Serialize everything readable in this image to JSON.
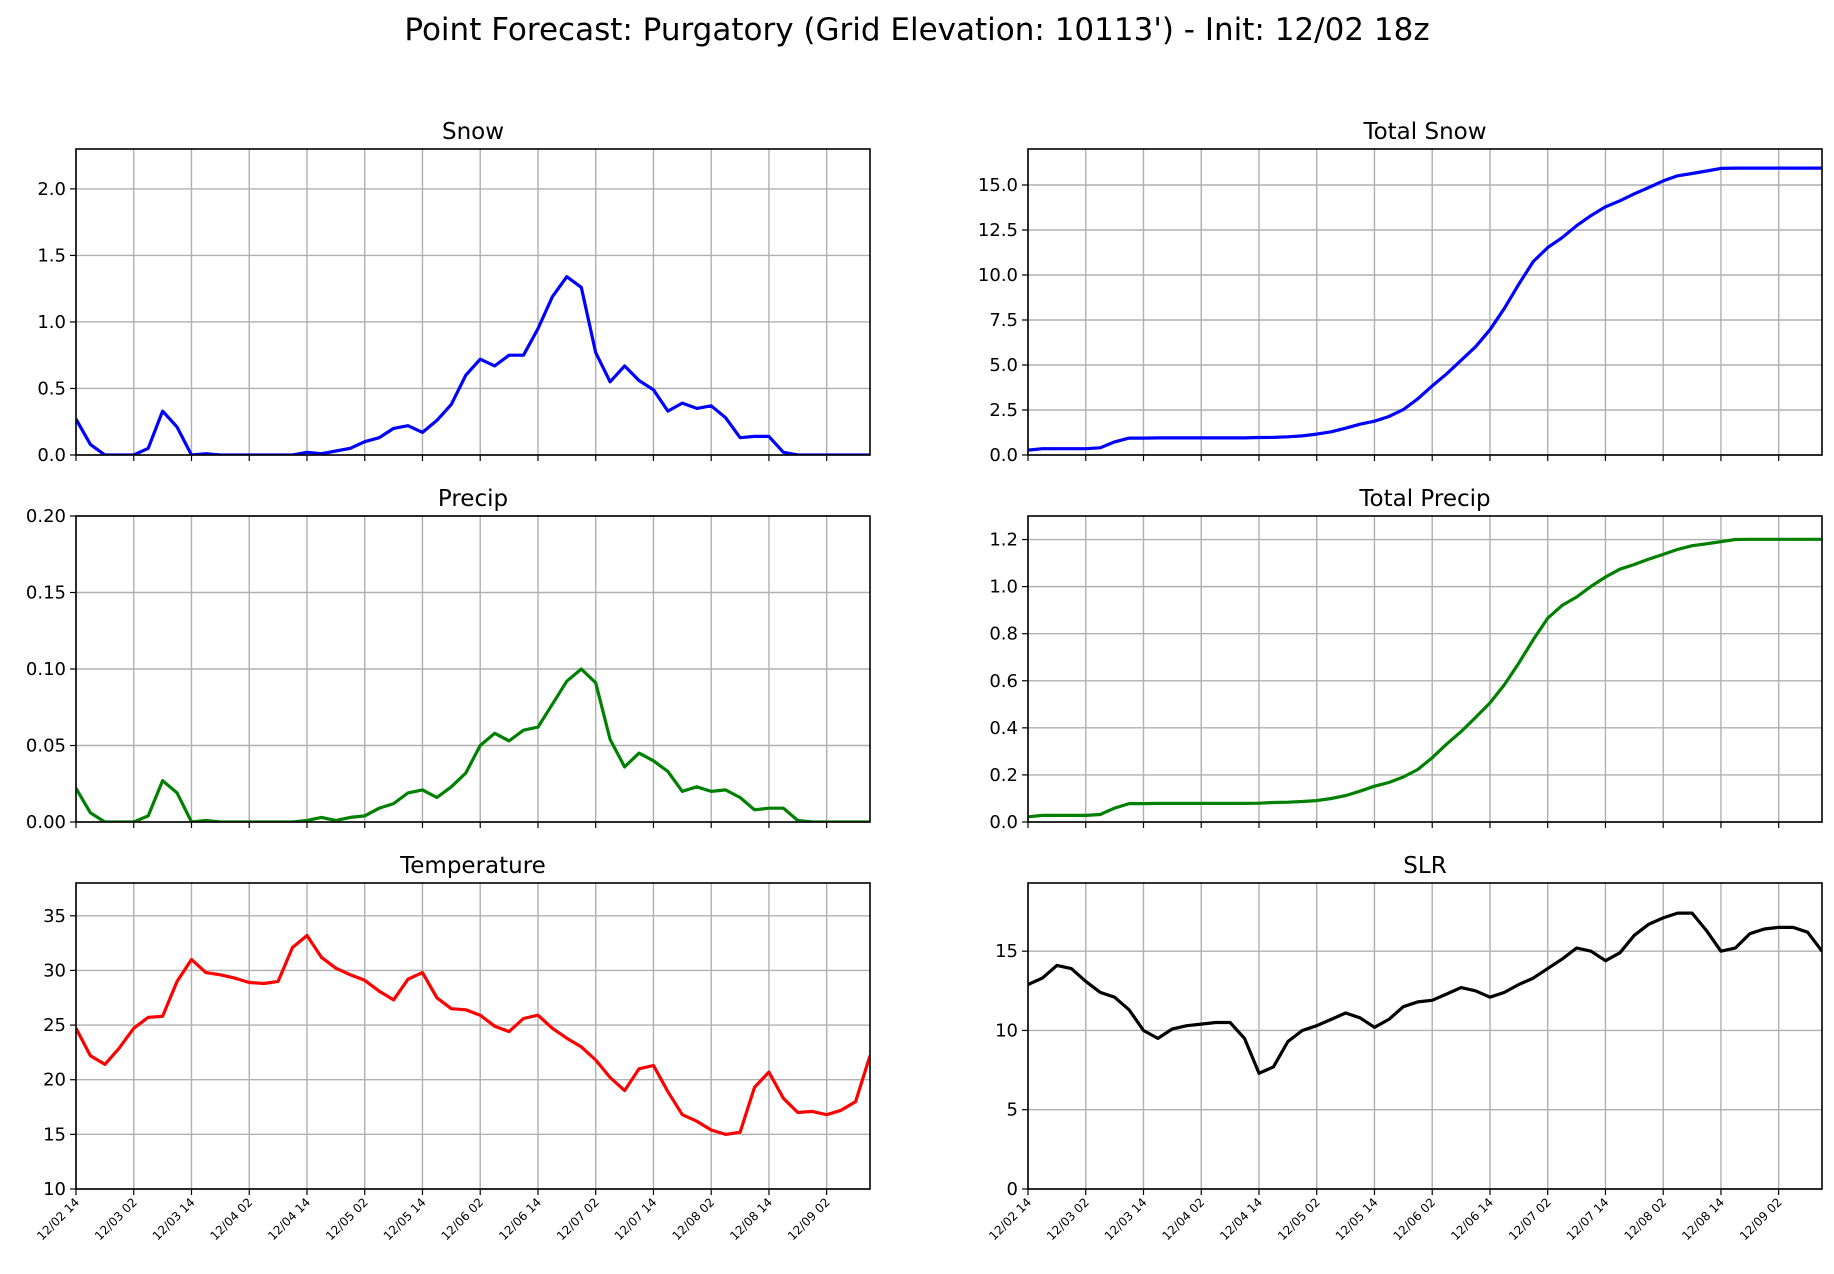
{
  "figure": {
    "title": "Point Forecast: Purgatory (Grid Elevation: 10113') - Init: 12/02 18z"
  },
  "x_tick_labels": [
    "12/02 14",
    "12/03 02",
    "12/03 14",
    "12/04 02",
    "12/04 14",
    "12/05 02",
    "12/05 14",
    "12/06 02",
    "12/06 14",
    "12/07 02",
    "12/07 14",
    "12/08 02",
    "12/08 14",
    "12/09 02"
  ],
  "chart_data": [
    {
      "type": "line",
      "title": "Snow",
      "xlabel": "",
      "ylabel": "",
      "x_unit": "hours from 12/02 14",
      "xlim": [
        0,
        165
      ],
      "ylim": [
        0,
        2.3
      ],
      "yticks": [
        "0.0",
        "0.5",
        "1.0",
        "1.5",
        "2.0"
      ],
      "color": "#0000ff",
      "grid": true,
      "x": [
        0,
        3,
        6,
        9,
        12,
        15,
        18,
        21,
        24,
        27,
        30,
        33,
        36,
        39,
        42,
        45,
        48,
        51,
        54,
        57,
        60,
        63,
        66,
        69,
        72,
        75,
        78,
        81,
        84,
        87,
        90,
        93,
        96,
        99,
        102,
        105,
        108,
        111,
        114,
        117,
        120,
        123,
        126,
        129,
        132,
        135,
        138,
        141,
        144,
        147,
        150,
        153,
        156,
        159,
        162,
        165
      ],
      "values": [
        0.27,
        0.08,
        0.0,
        0.0,
        0.0,
        0.05,
        0.33,
        0.21,
        0.0,
        0.01,
        0.0,
        0.0,
        0.0,
        0.0,
        0.0,
        0.0,
        0.02,
        0.01,
        0.03,
        0.05,
        0.1,
        0.13,
        0.2,
        0.22,
        0.17,
        0.26,
        0.38,
        0.6,
        0.72,
        0.67,
        0.75,
        0.75,
        0.95,
        1.19,
        1.34,
        1.26,
        0.77,
        0.55,
        0.67,
        0.56,
        0.49,
        0.33,
        0.39,
        0.35,
        0.37,
        0.28,
        0.13,
        0.14,
        0.14,
        0.02,
        0.0,
        0.0,
        0.0,
        0.0,
        0.0,
        0.0
      ]
    },
    {
      "type": "line",
      "title": "Total Snow",
      "xlabel": "",
      "ylabel": "",
      "x_unit": "hours from 12/02 14",
      "xlim": [
        0,
        165
      ],
      "ylim": [
        0,
        17
      ],
      "yticks": [
        "0.0",
        "2.5",
        "5.0",
        "7.5",
        "10.0",
        "12.5",
        "15.0"
      ],
      "color": "#0000ff",
      "grid": true,
      "x": [
        0,
        3,
        6,
        9,
        12,
        15,
        18,
        21,
        24,
        27,
        30,
        33,
        36,
        39,
        42,
        45,
        48,
        51,
        54,
        57,
        60,
        63,
        66,
        69,
        72,
        75,
        78,
        81,
        84,
        87,
        90,
        93,
        96,
        99,
        102,
        105,
        108,
        111,
        114,
        117,
        120,
        123,
        126,
        129,
        132,
        135,
        138,
        141,
        144,
        147,
        150,
        153,
        156,
        159,
        162,
        165
      ],
      "values": [
        0.27,
        0.35,
        0.35,
        0.35,
        0.35,
        0.4,
        0.73,
        0.94,
        0.94,
        0.95,
        0.95,
        0.95,
        0.95,
        0.95,
        0.95,
        0.95,
        0.97,
        0.98,
        1.01,
        1.06,
        1.16,
        1.29,
        1.49,
        1.71,
        1.88,
        2.14,
        2.52,
        3.12,
        3.84,
        4.51,
        5.26,
        6.01,
        6.96,
        8.15,
        9.49,
        10.75,
        11.52,
        12.07,
        12.74,
        13.3,
        13.79,
        14.12,
        14.51,
        14.86,
        15.23,
        15.51,
        15.64,
        15.78,
        15.92,
        15.94,
        15.94,
        15.94,
        15.94,
        15.94,
        15.94,
        15.94
      ]
    },
    {
      "type": "line",
      "title": "Precip",
      "xlabel": "",
      "ylabel": "",
      "x_unit": "hours from 12/02 14",
      "xlim": [
        0,
        165
      ],
      "ylim": [
        0,
        0.2
      ],
      "yticks": [
        "0.00",
        "0.05",
        "0.10",
        "0.15",
        "0.20"
      ],
      "color": "#008000",
      "grid": true,
      "x": [
        0,
        3,
        6,
        9,
        12,
        15,
        18,
        21,
        24,
        27,
        30,
        33,
        36,
        39,
        42,
        45,
        48,
        51,
        54,
        57,
        60,
        63,
        66,
        69,
        72,
        75,
        78,
        81,
        84,
        87,
        90,
        93,
        96,
        99,
        102,
        105,
        108,
        111,
        114,
        117,
        120,
        123,
        126,
        129,
        132,
        135,
        138,
        141,
        144,
        147,
        150,
        153,
        156,
        159,
        162,
        165
      ],
      "values": [
        0.022,
        0.006,
        0.0,
        0.0,
        0.0,
        0.004,
        0.027,
        0.019,
        0.0,
        0.001,
        0.0,
        0.0,
        0.0,
        0.0,
        0.0,
        0.0,
        0.001,
        0.003,
        0.001,
        0.003,
        0.004,
        0.009,
        0.012,
        0.019,
        0.021,
        0.016,
        0.023,
        0.032,
        0.05,
        0.058,
        0.053,
        0.06,
        0.062,
        0.077,
        0.092,
        0.1,
        0.091,
        0.054,
        0.036,
        0.045,
        0.04,
        0.033,
        0.02,
        0.023,
        0.02,
        0.021,
        0.016,
        0.008,
        0.009,
        0.009,
        0.001,
        0.0,
        0.0,
        0.0,
        0.0,
        0.0
      ]
    },
    {
      "type": "line",
      "title": "Total Precip",
      "xlabel": "",
      "ylabel": "",
      "x_unit": "hours from 12/02 14",
      "xlim": [
        0,
        165
      ],
      "ylim": [
        0,
        1.3
      ],
      "yticks": [
        "0.0",
        "0.2",
        "0.4",
        "0.6",
        "0.8",
        "1.0",
        "1.2"
      ],
      "color": "#008000",
      "grid": true,
      "x": [
        0,
        3,
        6,
        9,
        12,
        15,
        18,
        21,
        24,
        27,
        30,
        33,
        36,
        39,
        42,
        45,
        48,
        51,
        54,
        57,
        60,
        63,
        66,
        69,
        72,
        75,
        78,
        81,
        84,
        87,
        90,
        93,
        96,
        99,
        102,
        105,
        108,
        111,
        114,
        117,
        120,
        123,
        126,
        129,
        132,
        135,
        138,
        141,
        144,
        147,
        150,
        153,
        156,
        159,
        162,
        165
      ],
      "values": [
        0.022,
        0.028,
        0.028,
        0.028,
        0.028,
        0.032,
        0.059,
        0.078,
        0.078,
        0.079,
        0.079,
        0.079,
        0.079,
        0.079,
        0.079,
        0.079,
        0.08,
        0.083,
        0.084,
        0.087,
        0.091,
        0.1,
        0.112,
        0.131,
        0.152,
        0.168,
        0.191,
        0.223,
        0.273,
        0.331,
        0.384,
        0.444,
        0.506,
        0.583,
        0.675,
        0.775,
        0.866,
        0.92,
        0.956,
        1.001,
        1.041,
        1.074,
        1.094,
        1.117,
        1.137,
        1.158,
        1.174,
        1.182,
        1.191,
        1.2,
        1.201,
        1.201,
        1.201,
        1.201,
        1.201,
        1.201
      ]
    },
    {
      "type": "line",
      "title": "Temperature",
      "xlabel": "",
      "ylabel": "",
      "x_unit": "hours from 12/02 14",
      "xlim": [
        0,
        165
      ],
      "ylim": [
        10,
        38
      ],
      "yticks": [
        "10",
        "15",
        "20",
        "25",
        "30",
        "35"
      ],
      "color": "#ff0000",
      "grid": true,
      "x": [
        0,
        3,
        6,
        9,
        12,
        15,
        18,
        21,
        24,
        27,
        30,
        33,
        36,
        39,
        42,
        45,
        48,
        51,
        54,
        57,
        60,
        63,
        66,
        69,
        72,
        75,
        78,
        81,
        84,
        87,
        90,
        93,
        96,
        99,
        102,
        105,
        108,
        111,
        114,
        117,
        120,
        123,
        126,
        129,
        132,
        135,
        138,
        141,
        144,
        147,
        150,
        153,
        156,
        159,
        162,
        165
      ],
      "values": [
        24.7,
        22.2,
        21.4,
        22.9,
        24.7,
        25.7,
        25.8,
        29.0,
        31.0,
        29.8,
        29.6,
        29.3,
        28.9,
        28.8,
        29.0,
        32.1,
        33.2,
        31.2,
        30.2,
        29.6,
        29.1,
        28.1,
        27.3,
        29.2,
        29.8,
        27.5,
        26.5,
        26.4,
        25.9,
        24.9,
        24.4,
        25.6,
        25.9,
        24.7,
        23.8,
        23.0,
        21.8,
        20.2,
        19.0,
        21.0,
        21.3,
        18.9,
        16.8,
        16.2,
        15.4,
        15.0,
        15.2,
        19.3,
        20.7,
        18.3,
        17.0,
        17.1,
        16.8,
        17.2,
        18.0,
        22.2
      ]
    },
    {
      "type": "line",
      "title": "SLR",
      "xlabel": "",
      "ylabel": "",
      "x_unit": "hours from 12/02 14",
      "xlim": [
        0,
        165
      ],
      "ylim": [
        0,
        19.3
      ],
      "yticks": [
        "0",
        "5",
        "10",
        "15"
      ],
      "color": "#000000",
      "grid": true,
      "x": [
        0,
        3,
        6,
        9,
        12,
        15,
        18,
        21,
        24,
        27,
        30,
        33,
        36,
        39,
        42,
        45,
        48,
        51,
        54,
        57,
        60,
        63,
        66,
        69,
        72,
        75,
        78,
        81,
        84,
        87,
        90,
        93,
        96,
        99,
        102,
        105,
        108,
        111,
        114,
        117,
        120,
        123,
        126,
        129,
        132,
        135,
        138,
        141,
        144,
        147,
        150,
        153,
        156,
        159,
        162,
        165
      ],
      "values": [
        12.9,
        13.3,
        14.1,
        13.9,
        13.1,
        12.4,
        12.1,
        11.3,
        10.0,
        9.5,
        10.1,
        10.3,
        10.4,
        10.5,
        10.5,
        9.5,
        7.3,
        7.7,
        9.3,
        10.0,
        10.3,
        10.7,
        11.1,
        10.8,
        10.2,
        10.7,
        11.5,
        11.8,
        11.9,
        12.3,
        12.7,
        12.5,
        12.1,
        12.4,
        12.9,
        13.3,
        13.9,
        14.5,
        15.2,
        15.0,
        14.4,
        14.9,
        16.0,
        16.7,
        17.1,
        17.4,
        17.4,
        16.3,
        15.0,
        15.2,
        16.1,
        16.4,
        16.5,
        16.5,
        16.2,
        15.0
      ]
    }
  ]
}
